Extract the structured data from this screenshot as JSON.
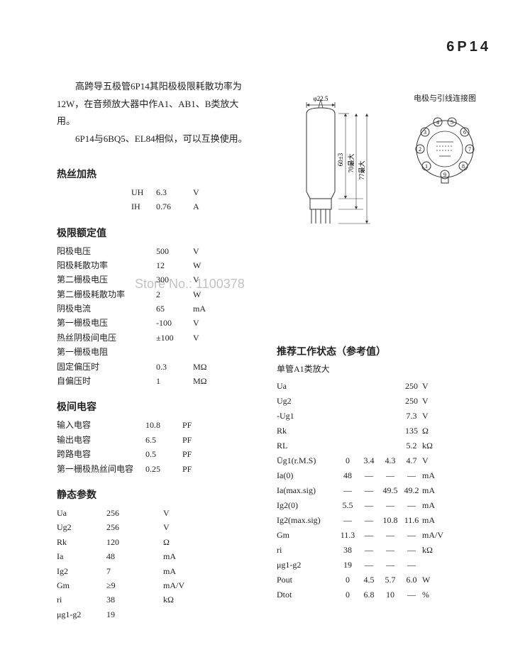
{
  "title": "6P14",
  "intro": {
    "p1": "高跨导五极管6P14其阳极极限耗散功率为12W，在音频放大器中作A1、AB1、B类放大用。",
    "p2": "6P14与6BQ5、EL84相似，可以互换使用。"
  },
  "diagram": {
    "tube_width_label": "φ22.5",
    "height1": "60±3",
    "height2": "70最大",
    "height3": "77最大",
    "pin_caption": "电极与引线连接图"
  },
  "watermark": "Store No.: 1100378",
  "heater": {
    "title": "热丝加热",
    "rows": [
      {
        "sym": "UH",
        "val": "6.3",
        "unit": "V"
      },
      {
        "sym": "IH",
        "val": "0.76",
        "unit": "A"
      }
    ]
  },
  "limits": {
    "title": "极限额定值",
    "rows": [
      {
        "label": "阳极电压",
        "val": "500",
        "unit": "V"
      },
      {
        "label": "阳极耗散功率",
        "val": "12",
        "unit": "W"
      },
      {
        "label": "第二栅极电压",
        "val": "300",
        "unit": "V"
      },
      {
        "label": "第二栅极耗散功率",
        "val": "2",
        "unit": "W"
      },
      {
        "label": "阴极电流",
        "val": "65",
        "unit": "mA"
      },
      {
        "label": "第一栅极电压",
        "val": "-100",
        "unit": "V"
      },
      {
        "label": "热丝阴极间电压",
        "val": "±100",
        "unit": "V"
      },
      {
        "title": "第一栅极电阻"
      },
      {
        "label": "固定偏压时",
        "val": "0.3",
        "unit": "MΩ"
      },
      {
        "label": "自偏压时",
        "val": "1",
        "unit": "MΩ"
      }
    ]
  },
  "caps": {
    "title": "极间电容",
    "rows": [
      {
        "label": "输入电容",
        "val": "10.8",
        "unit": "PF"
      },
      {
        "label": "输出电容",
        "val": "6.5",
        "unit": "PF"
      },
      {
        "label": "跨路电容",
        "val": "0.5",
        "unit": "PF"
      },
      {
        "label": "第一栅极热丝间电容",
        "val": "0.25",
        "unit": "PF"
      }
    ]
  },
  "static": {
    "title": "静态参数",
    "rows": [
      {
        "sym": "Ua",
        "val": "256",
        "unit": "V"
      },
      {
        "sym": "Ug2",
        "val": "256",
        "unit": "V"
      },
      {
        "sym": "Rk",
        "val": "120",
        "unit": "Ω"
      },
      {
        "sym": "Ia",
        "val": "48",
        "unit": "mA"
      },
      {
        "sym": "Ig2",
        "val": "7",
        "unit": "mA"
      },
      {
        "sym": "Gm",
        "val": "≥9",
        "unit": "mA/V"
      },
      {
        "sym": "ri",
        "val": "38",
        "unit": "kΩ"
      },
      {
        "sym": "μg1-g2",
        "val": "19",
        "unit": ""
      }
    ]
  },
  "rec": {
    "title": "推荐工作状态（参考值）",
    "subtitle": "单管A1类放大",
    "rows": [
      {
        "label": "Ua",
        "vals": [
          "",
          "",
          "",
          "250"
        ],
        "unit": "V"
      },
      {
        "label": "Ug2",
        "vals": [
          "",
          "",
          "",
          "250"
        ],
        "unit": "V"
      },
      {
        "label": "-Ug1",
        "vals": [
          "",
          "",
          "",
          "7.3"
        ],
        "unit": "V"
      },
      {
        "label": "Rk",
        "vals": [
          "",
          "",
          "",
          "135"
        ],
        "unit": "Ω"
      },
      {
        "label": "RL",
        "vals": [
          "",
          "",
          "",
          "5.2"
        ],
        "unit": "kΩ"
      },
      {
        "label": "Ūg1(r.M.S)",
        "vals": [
          "0",
          "3.4",
          "4.3",
          "4.7"
        ],
        "unit": "V"
      },
      {
        "label": "Ia(0)",
        "vals": [
          "48",
          "—",
          "—",
          "—"
        ],
        "unit": "mA"
      },
      {
        "label": "Ia(max.sig)",
        "vals": [
          "—",
          "—",
          "49.5",
          "49.2"
        ],
        "unit": "mA"
      },
      {
        "label": "Ig2(0)",
        "vals": [
          "5.5",
          "—",
          "—",
          "—"
        ],
        "unit": "mA"
      },
      {
        "label": "Ig2(max.sig)",
        "vals": [
          "—",
          "—",
          "10.8",
          "11.6"
        ],
        "unit": "mA"
      },
      {
        "label": "Gm",
        "vals": [
          "11.3",
          "—",
          "—",
          "—"
        ],
        "unit": "mA/V"
      },
      {
        "label": "ri",
        "vals": [
          "38",
          "—",
          "—",
          "—"
        ],
        "unit": "kΩ"
      },
      {
        "label": "μg1-g2",
        "vals": [
          "19",
          "—",
          "—",
          "—"
        ],
        "unit": ""
      },
      {
        "label": "Pout",
        "vals": [
          "0",
          "4.5",
          "5.7",
          "6.0"
        ],
        "unit": "W"
      },
      {
        "label": "Dtot",
        "vals": [
          "0",
          "6.8",
          "10",
          "—"
        ],
        "unit": "%"
      }
    ]
  }
}
